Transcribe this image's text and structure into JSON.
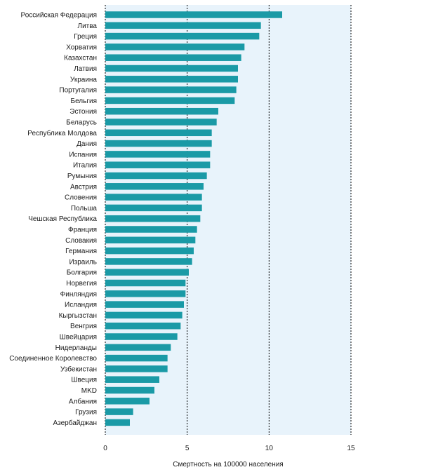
{
  "chart_data": {
    "type": "bar",
    "orientation": "horizontal",
    "categories": [
      "Российская Федерация",
      "Литва",
      "Греция",
      "Хорватия",
      "Казахстан",
      "Латвия",
      "Украина",
      "Португалия",
      "Бельгия",
      "Эстония",
      "Беларусь",
      "Республика Молдова",
      "Дания",
      "Испания",
      "Италия",
      "Румыния",
      "Австрия",
      "Словения",
      "Польша",
      "Чешская Республика",
      "Франция",
      "Словакия",
      "Германия",
      "Израиль",
      "Болгария",
      "Норвегия",
      "Финляндия",
      "Исландия",
      "Кыргызстан",
      "Венгрия",
      "Швейцария",
      "Нидерланды",
      "Соединенное Королевство",
      "Узбекистан",
      "Швеция",
      "MKD",
      "Албания",
      "Грузия",
      "Азербайджан"
    ],
    "values": [
      10.8,
      9.5,
      9.4,
      8.5,
      8.3,
      8.1,
      8.1,
      8.0,
      7.9,
      6.9,
      6.8,
      6.5,
      6.5,
      6.4,
      6.4,
      6.2,
      6.0,
      5.9,
      5.9,
      5.8,
      5.6,
      5.5,
      5.4,
      5.3,
      5.1,
      4.9,
      4.9,
      4.8,
      4.7,
      4.6,
      4.4,
      4.0,
      3.8,
      3.8,
      3.3,
      3.0,
      2.7,
      1.7,
      1.5
    ],
    "xlabel": "Смертность на 100000 населения",
    "ylabel": "",
    "xlim": [
      0,
      15
    ],
    "xticks": [
      "0",
      "5",
      "10",
      "15"
    ],
    "grid": "vertical-dotted",
    "colors": {
      "bar": "#1a9aa6",
      "plot_background": "#e8f3fb",
      "gridline": "#000000"
    }
  }
}
